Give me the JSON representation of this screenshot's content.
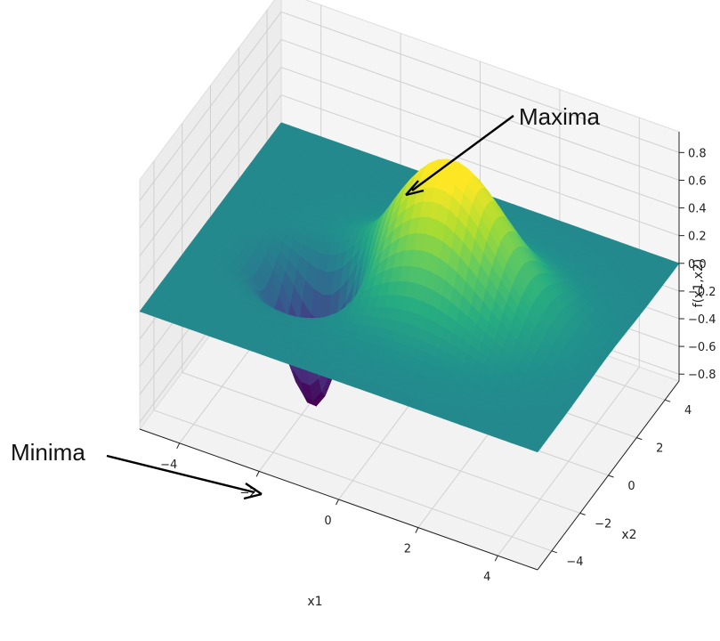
{
  "chart_data": {
    "type": "surface3d",
    "title": "",
    "function": "f(x1,x2) = exp(-((x1-1)^2 + x2^2)/4) - exp(-((x1+2)^2 + (x2+1)^2))",
    "xlabel": "x1",
    "ylabel": "x2",
    "zlabel": "f(x1,x2)",
    "xlim": [
      -5,
      5
    ],
    "ylim": [
      -5,
      5
    ],
    "zlim": [
      -0.85,
      0.95
    ],
    "x_ticks": [
      "−4",
      "−2",
      "0",
      "2",
      "4"
    ],
    "x_tick_values": [
      -4,
      -2,
      0,
      2,
      4
    ],
    "y_ticks": [
      "−4",
      "−2",
      "0",
      "2",
      "4"
    ],
    "y_tick_values": [
      -4,
      -2,
      0,
      2,
      4
    ],
    "z_ticks": [
      "−0.8",
      "−0.6",
      "−0.4",
      "−0.2",
      "0.0",
      "0.2",
      "0.4",
      "0.6",
      "0.8"
    ],
    "z_tick_values": [
      -0.8,
      -0.6,
      -0.4,
      -0.2,
      0.0,
      0.2,
      0.4,
      0.6,
      0.8
    ],
    "colormap": "viridis",
    "grid": true,
    "annotations": [
      {
        "text": "Maxima",
        "point": {
          "x1": 1,
          "x2": 0,
          "z": 0.95
        }
      },
      {
        "text": "Minima",
        "point": {
          "x1": -2,
          "x2": -1,
          "z": -0.85
        }
      }
    ],
    "colors": {
      "pane": "#f2f2f2",
      "pane_edge": "#dcdcdc",
      "grid": "#d0d0d0",
      "arrow": "#000000"
    }
  }
}
